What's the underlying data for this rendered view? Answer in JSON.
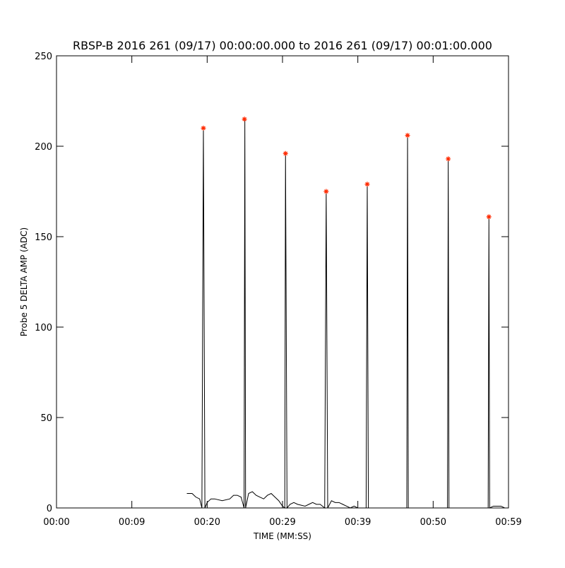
{
  "chart_data": {
    "type": "line",
    "title": "RBSP-B 2016 261 (09/17) 00:00:00.000 to 2016 261 (09/17) 00:01:00.000",
    "x_label": "TIME (MM:SS)",
    "y_label": "Probe 5 DELTA AMP (ADC)",
    "xlim": [
      0,
      60
    ],
    "ylim": [
      0,
      250
    ],
    "xticks": [
      {
        "value": 0,
        "label": "00:00"
      },
      {
        "value": 10,
        "label": "00:09"
      },
      {
        "value": 20,
        "label": "00:20"
      },
      {
        "value": 30,
        "label": "00:29"
      },
      {
        "value": 40,
        "label": "00:39"
      },
      {
        "value": 50,
        "label": "00:50"
      },
      {
        "value": 60,
        "label": "00:59"
      }
    ],
    "yticks": [
      0,
      50,
      100,
      150,
      200,
      250
    ],
    "series": [
      {
        "color": "#000000",
        "style": "line",
        "x": [
          17.3,
          18.0,
          18.5,
          19.0,
          19.3,
          19.5,
          19.7,
          20.0,
          20.5,
          21,
          22,
          23,
          23.5,
          24,
          24.5,
          24.9,
          25.0,
          25.1,
          25.5,
          26,
          26.5,
          27,
          27.5,
          28,
          28.5,
          29,
          29.5,
          30.0,
          30.3,
          30.4,
          30.6,
          31,
          31.5,
          32,
          33,
          33.5,
          34,
          34.5,
          35,
          35.6,
          35.8,
          36,
          36.5,
          37,
          37.5,
          38,
          38.5,
          39,
          39.5,
          40,
          41.1,
          41.25,
          41.4,
          42,
          46.5,
          46.6,
          46.7,
          47.5,
          51.9,
          52.0,
          52.1,
          57.3,
          57.4,
          57.5,
          58,
          59,
          59.5
        ],
        "values": [
          8,
          8,
          6,
          5,
          0,
          210,
          0,
          3,
          5,
          5,
          4,
          5,
          7,
          7,
          6,
          0,
          215,
          0,
          8,
          9,
          7,
          6,
          5,
          7,
          8,
          6,
          4,
          1,
          0,
          196,
          0,
          2,
          3,
          2,
          1,
          2,
          3,
          2,
          2,
          0,
          175,
          0,
          4,
          3,
          3,
          2,
          1,
          0,
          1,
          0,
          0,
          179,
          0,
          0,
          0,
          206,
          0,
          0,
          0,
          193,
          0,
          0,
          161,
          0,
          1,
          1,
          0
        ]
      },
      {
        "color": "#ff2a00",
        "style": "asterisk",
        "x": [
          19.5,
          24.95,
          30.4,
          35.8,
          41.25,
          46.6,
          52.0,
          57.4
        ],
        "values": [
          210,
          215,
          196,
          175,
          179,
          206,
          193,
          161
        ]
      }
    ]
  }
}
